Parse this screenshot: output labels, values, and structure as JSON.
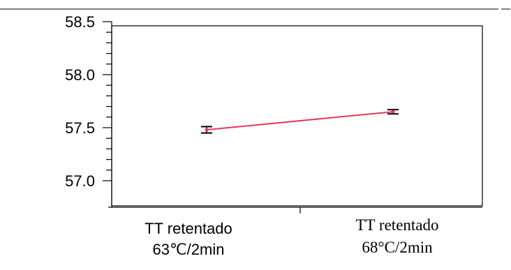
{
  "chart_data": {
    "type": "line",
    "categories": [
      {
        "lines": [
          "TT retentado",
          "63℃/2min"
        ]
      },
      {
        "lines": [
          "TT retentado",
          "68°C/2min"
        ]
      }
    ],
    "series": [
      {
        "values": [
          57.48,
          57.65
        ],
        "error": [
          0.03,
          0.02
        ]
      }
    ],
    "ylim": [
      57.0,
      58.5
    ],
    "yticks": [
      "58.5",
      "58.0",
      "57.5",
      "57.0"
    ],
    "xlabel": "",
    "ylabel": "",
    "title": "",
    "grid": false,
    "colors": {
      "line": "#e8365a",
      "errorbar": "#000000",
      "axis": "#000000"
    }
  }
}
